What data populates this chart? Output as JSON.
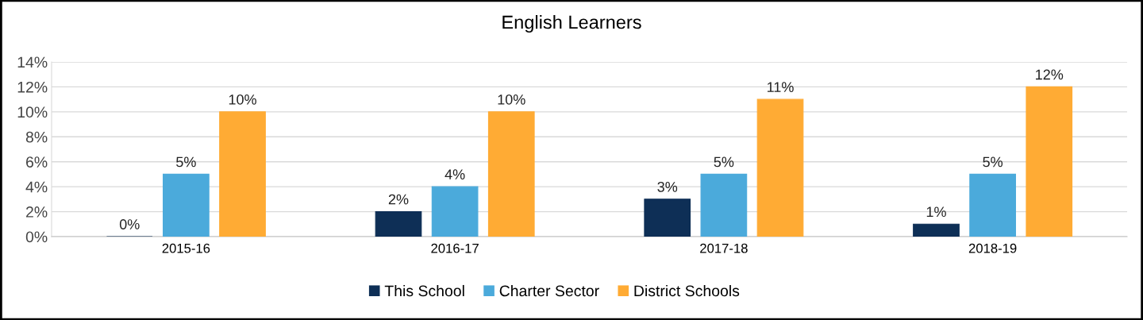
{
  "chart_data": {
    "type": "bar",
    "title": "English Learners",
    "categories": [
      "2015-16",
      "2016-17",
      "2017-18",
      "2018-19"
    ],
    "series": [
      {
        "name": "This School",
        "color": "#0e2f56",
        "values": [
          0,
          2,
          3,
          1
        ],
        "value_labels": [
          "0%",
          "2%",
          "3%",
          "1%"
        ]
      },
      {
        "name": "Charter Sector",
        "color": "#4baadb",
        "values": [
          5,
          4,
          5,
          5
        ],
        "value_labels": [
          "5%",
          "4%",
          "5%",
          "5%"
        ]
      },
      {
        "name": "District Schools",
        "color": "#ffab34",
        "values": [
          10,
          10,
          11,
          12
        ],
        "value_labels": [
          "10%",
          "10%",
          "11%",
          "12%"
        ]
      }
    ],
    "ylim": [
      0,
      14
    ],
    "yticks": [
      {
        "value": 0,
        "label": "0%"
      },
      {
        "value": 2,
        "label": "2%"
      },
      {
        "value": 4,
        "label": "4%"
      },
      {
        "value": 6,
        "label": "6%"
      },
      {
        "value": 8,
        "label": "8%"
      },
      {
        "value": 10,
        "label": "10%"
      },
      {
        "value": 12,
        "label": "12%"
      },
      {
        "value": 14,
        "label": "14%"
      }
    ],
    "grid": "y",
    "legend": "bottom"
  }
}
